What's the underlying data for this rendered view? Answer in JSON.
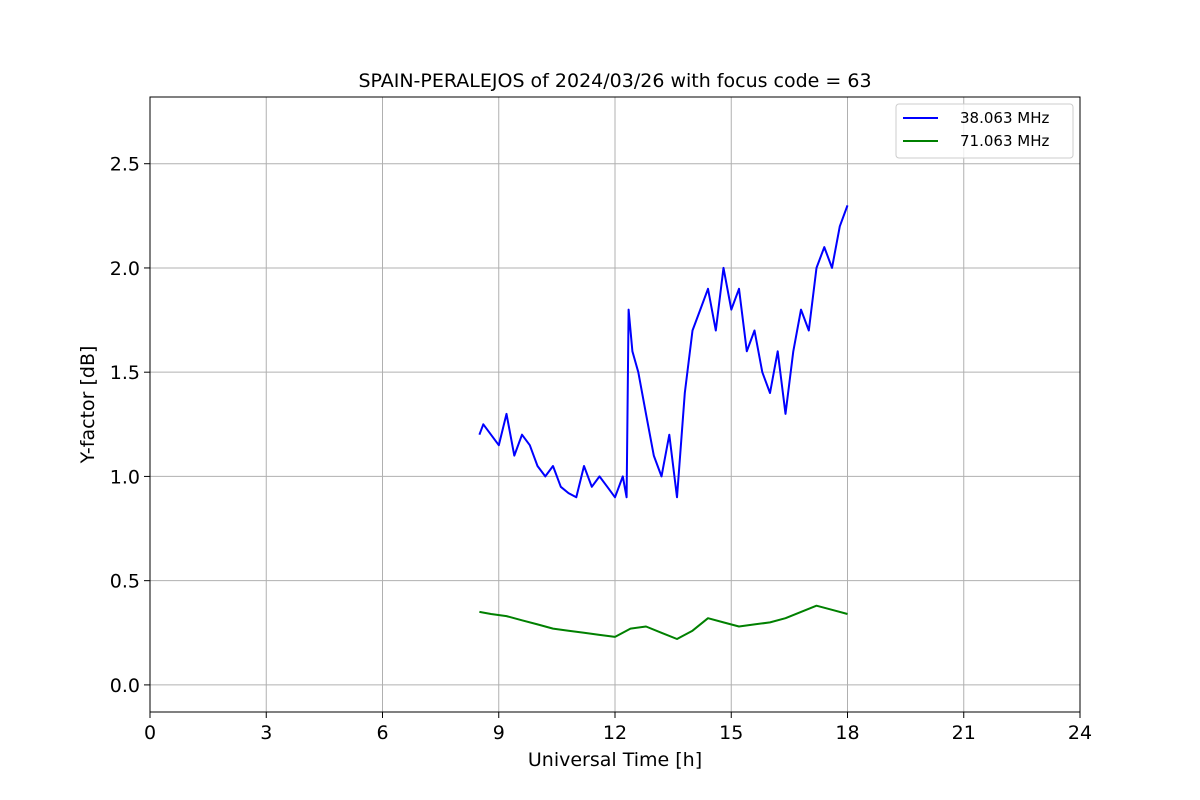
{
  "chart_data": {
    "type": "line",
    "title": "SPAIN-PERALEJOS of 2024/03/26 with focus code = 63",
    "xlabel": "Universal Time [h]",
    "ylabel": "Y-factor [dB]",
    "xlim": [
      0,
      24
    ],
    "ylim": [
      -0.13,
      2.82
    ],
    "xticks": [
      0,
      3,
      6,
      9,
      12,
      15,
      18,
      21,
      24
    ],
    "yticks": [
      0.0,
      0.5,
      1.0,
      1.5,
      2.0,
      2.5
    ],
    "xtick_labels": [
      "0",
      "3",
      "6",
      "9",
      "12",
      "15",
      "18",
      "21",
      "24"
    ],
    "ytick_labels": [
      "0.0",
      "0.5",
      "1.0",
      "1.5",
      "2.0",
      "2.5"
    ],
    "grid": true,
    "legend_position": "top-right",
    "series": [
      {
        "name": "38.063 MHz",
        "color": "#0000ff",
        "x": [
          8.5,
          8.6,
          8.8,
          9.0,
          9.2,
          9.4,
          9.6,
          9.8,
          10.0,
          10.2,
          10.4,
          10.6,
          10.8,
          11.0,
          11.2,
          11.4,
          11.6,
          11.8,
          12.0,
          12.2,
          12.3,
          12.35,
          12.45,
          12.6,
          12.8,
          13.0,
          13.2,
          13.4,
          13.6,
          13.8,
          14.0,
          14.2,
          14.4,
          14.6,
          14.8,
          15.0,
          15.2,
          15.4,
          15.6,
          15.8,
          16.0,
          16.2,
          16.4,
          16.6,
          16.8,
          17.0,
          17.2,
          17.4,
          17.6,
          17.8,
          18.0
        ],
        "y": [
          1.2,
          1.25,
          1.2,
          1.15,
          1.3,
          1.1,
          1.2,
          1.15,
          1.05,
          1.0,
          1.05,
          0.95,
          0.92,
          0.9,
          1.05,
          0.95,
          1.0,
          0.95,
          0.9,
          1.0,
          0.9,
          1.8,
          1.6,
          1.5,
          1.3,
          1.1,
          1.0,
          1.2,
          0.9,
          1.4,
          1.7,
          1.8,
          1.9,
          1.7,
          2.0,
          1.8,
          1.9,
          1.6,
          1.7,
          1.5,
          1.4,
          1.6,
          1.3,
          1.6,
          1.8,
          1.7,
          2.0,
          2.1,
          2.0,
          2.2,
          2.3
        ]
      },
      {
        "name": "71.063 MHz",
        "color": "#008000",
        "x": [
          8.5,
          8.8,
          9.2,
          9.6,
          10.0,
          10.4,
          10.8,
          11.2,
          11.6,
          12.0,
          12.4,
          12.8,
          13.2,
          13.6,
          14.0,
          14.4,
          14.8,
          15.2,
          15.6,
          16.0,
          16.4,
          16.8,
          17.2,
          17.6,
          18.0
        ],
        "y": [
          0.35,
          0.34,
          0.33,
          0.31,
          0.29,
          0.27,
          0.26,
          0.25,
          0.24,
          0.23,
          0.27,
          0.28,
          0.25,
          0.22,
          0.26,
          0.32,
          0.3,
          0.28,
          0.29,
          0.3,
          0.32,
          0.35,
          0.38,
          0.36,
          0.34
        ]
      }
    ]
  }
}
